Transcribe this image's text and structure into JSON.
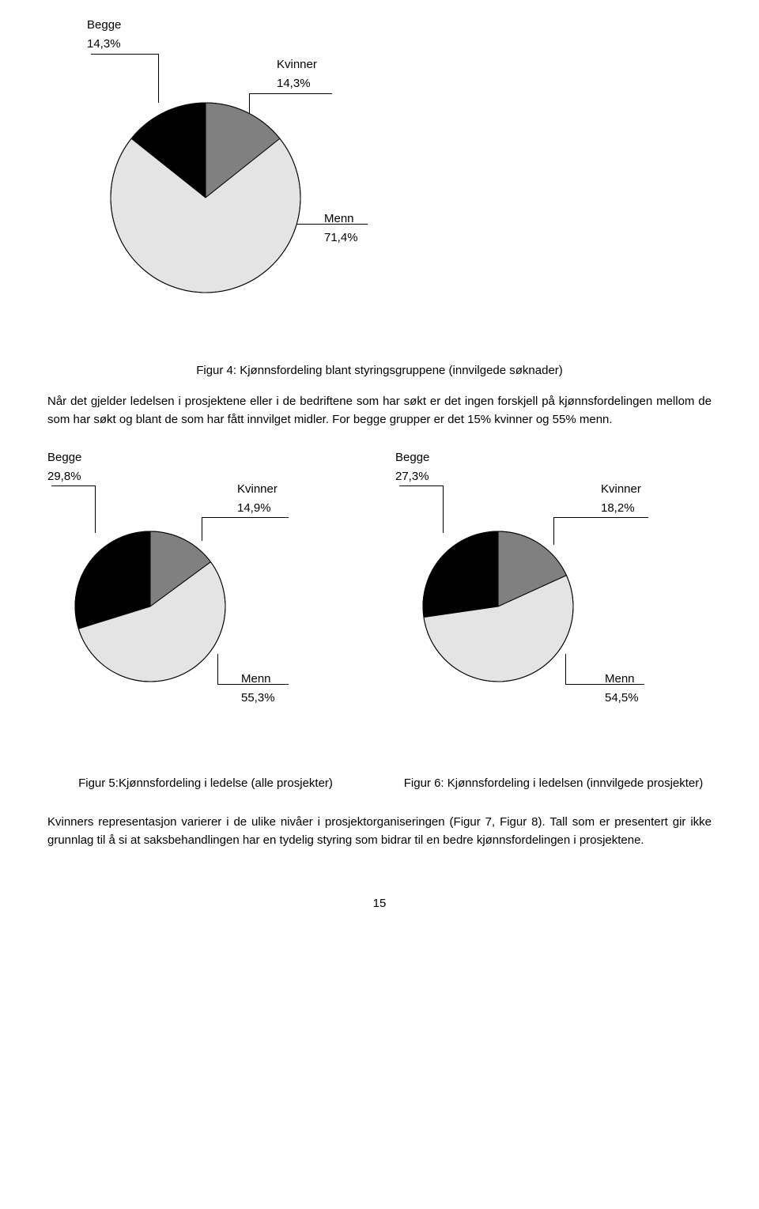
{
  "chart1": {
    "type": "pie",
    "labels": {
      "begge": "Begge",
      "kvinner": "Kvinner",
      "menn": "Menn"
    },
    "values": {
      "begge": "14,3%",
      "kvinner": "14,3%",
      "menn": "71,4%"
    },
    "slices": [
      {
        "label": "begge",
        "value": 14.3,
        "color": "#000000"
      },
      {
        "label": "kvinner",
        "value": 14.3,
        "color": "#808080"
      },
      {
        "label": "menn",
        "value": 71.4,
        "color": "#e4e4e4"
      }
    ],
    "stroke": "#000000",
    "radius": 120,
    "caption": "Figur 4: Kjønnsfordeling blant styringsgruppene (innvilgede søknader)"
  },
  "para1": "Når det gjelder ledelsen i prosjektene eller i de bedriftene som har søkt er det ingen forskjell på kjønnsfordelingen mellom de som har søkt og blant de som har fått innvilget midler. For begge grupper er det 15% kvinner og 55% menn.",
  "chart2": {
    "type": "pie",
    "labels": {
      "begge": "Begge",
      "kvinner": "Kvinner",
      "menn": "Menn"
    },
    "values": {
      "begge": "29,8%",
      "kvinner": "14,9%",
      "menn": "55,3%"
    },
    "slices": [
      {
        "label": "begge",
        "value": 29.8,
        "color": "#000000"
      },
      {
        "label": "kvinner",
        "value": 14.9,
        "color": "#808080"
      },
      {
        "label": "menn",
        "value": 55.3,
        "color": "#e4e4e4"
      }
    ],
    "stroke": "#000000",
    "radius": 95,
    "caption": "Figur 5:Kjønnsfordeling i ledelse (alle prosjekter)"
  },
  "chart3": {
    "type": "pie",
    "labels": {
      "begge": "Begge",
      "kvinner": "Kvinner",
      "menn": "Menn"
    },
    "values": {
      "begge": "27,3%",
      "kvinner": "18,2%",
      "menn": "54,5%"
    },
    "slices": [
      {
        "label": "begge",
        "value": 27.3,
        "color": "#000000"
      },
      {
        "label": "kvinner",
        "value": 18.2,
        "color": "#808080"
      },
      {
        "label": "menn",
        "value": 54.5,
        "color": "#e4e4e4"
      }
    ],
    "stroke": "#000000",
    "radius": 95,
    "caption": "Figur 6: Kjønnsfordeling i ledelsen (innvilgede prosjekter)"
  },
  "para2": "Kvinners representasjon varierer i de ulike nivåer i prosjektorganiseringen (Figur 7, Figur 8). Tall som er presentert gir ikke grunnlag til å si at saksbehandlingen har en tydelig styring som bidrar til en bedre kjønnsfordelingen i prosjektene.",
  "page_number": "15"
}
